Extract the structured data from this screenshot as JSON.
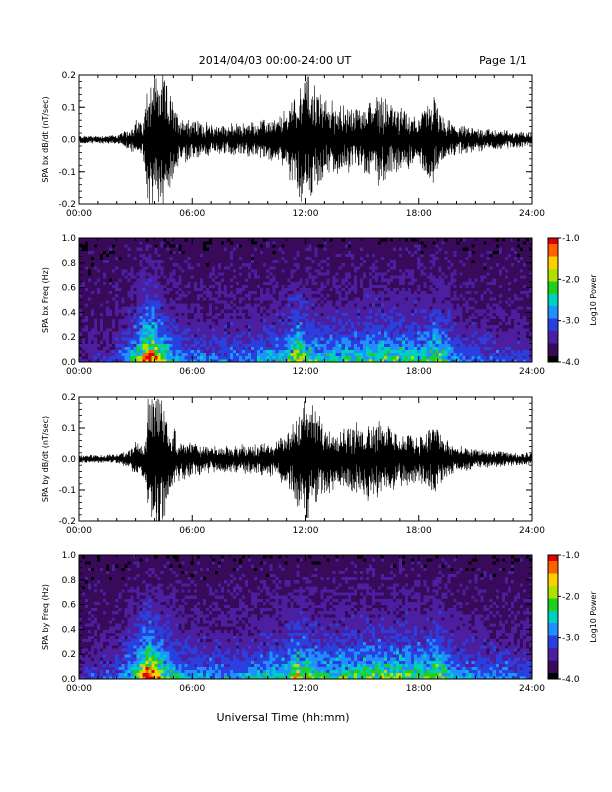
{
  "header": {
    "title": "2014/04/03  00:00-24:00 UT",
    "page": "Page 1/1"
  },
  "x_axis_title": "Universal Time (hh:mm)",
  "colors": {
    "trace": "#000000",
    "spectrogram_scale": [
      "#000000",
      "#3a0a5a",
      "#4b1fa0",
      "#2a3fe0",
      "#1e90ff",
      "#00d0c0",
      "#20d020",
      "#b0e000",
      "#ffd000",
      "#ff6000",
      "#e00000"
    ]
  },
  "chart_data": [
    {
      "type": "line",
      "name": "panel-bx-dbdt",
      "ylabel": "SPA bx dB/dt (nT/sec)",
      "xlim_hours": [
        0,
        24
      ],
      "ylim": [
        -0.2,
        0.2
      ],
      "x_tick_labels": [
        "00:00",
        "06:00",
        "12:00",
        "18:00",
        "24:00"
      ],
      "y_tick_labels": [
        "0.2",
        "0.1",
        "0.0",
        "-0.1",
        "-0.2"
      ],
      "y_tick_values": [
        0.2,
        0.1,
        0.0,
        -0.1,
        -0.2
      ],
      "envelope": {
        "x_hours": [
          0,
          1,
          2,
          2.7,
          3.0,
          3.4,
          3.7,
          4.0,
          4.4,
          4.8,
          5.2,
          6,
          7,
          8,
          9,
          10,
          10.5,
          11,
          11.5,
          12,
          12.5,
          13,
          14,
          15,
          15.5,
          16,
          16.5,
          17,
          18,
          18.5,
          18.8,
          19.2,
          20,
          21,
          22,
          23,
          24
        ],
        "amplitude": [
          0.012,
          0.012,
          0.014,
          0.03,
          0.06,
          0.05,
          0.2,
          0.2,
          0.2,
          0.14,
          0.08,
          0.06,
          0.045,
          0.045,
          0.05,
          0.06,
          0.06,
          0.09,
          0.15,
          0.2,
          0.16,
          0.12,
          0.1,
          0.09,
          0.13,
          0.14,
          0.11,
          0.09,
          0.07,
          0.11,
          0.13,
          0.07,
          0.04,
          0.035,
          0.03,
          0.025,
          0.022
        ]
      }
    },
    {
      "type": "heatmap",
      "name": "panel-bx-freq",
      "ylabel": "SPA bx Freq (Hz)",
      "colorbar_label": "Log10 Power",
      "colorbar_ticks": [
        "-1.0",
        "-2.0",
        "-3.0",
        "-4.0"
      ],
      "color_range": [
        -4.0,
        -1.0
      ],
      "xlim_hours": [
        0,
        24
      ],
      "ylim_hz": [
        0.0,
        1.0
      ],
      "x_tick_labels": [
        "00:00",
        "06:00",
        "12:00",
        "18:00",
        "24:00"
      ],
      "y_tick_labels": [
        "1.0",
        "0.8",
        "0.6",
        "0.4",
        "0.2",
        "0.0"
      ],
      "y_tick_values": [
        1.0,
        0.8,
        0.6,
        0.4,
        0.2,
        0.0
      ],
      "activity_hours": [
        0,
        2,
        3.0,
        3.6,
        3.9,
        4.3,
        5.0,
        6,
        9,
        11,
        11.6,
        12,
        13,
        15,
        16,
        18.5,
        18.9,
        20,
        24
      ],
      "activity_level": [
        0.1,
        0.2,
        0.5,
        1.0,
        0.95,
        0.7,
        0.4,
        0.3,
        0.3,
        0.45,
        0.75,
        0.55,
        0.45,
        0.5,
        0.55,
        0.5,
        0.65,
        0.3,
        0.2
      ]
    },
    {
      "type": "line",
      "name": "panel-by-dbdt",
      "ylabel": "SPA by dB/dt (nT/sec)",
      "xlim_hours": [
        0,
        24
      ],
      "ylim": [
        -0.2,
        0.2
      ],
      "x_tick_labels": [
        "00:00",
        "06:00",
        "12:00",
        "18:00",
        "24:00"
      ],
      "y_tick_labels": [
        "0.2",
        "0.1",
        "0.0",
        "-0.1",
        "-0.2"
      ],
      "y_tick_values": [
        0.2,
        0.1,
        0.0,
        -0.1,
        -0.2
      ],
      "envelope": {
        "x_hours": [
          0,
          1,
          2,
          2.7,
          3.0,
          3.4,
          3.7,
          4.0,
          4.4,
          4.8,
          5.2,
          6,
          7,
          8,
          9,
          10,
          10.5,
          11,
          11.5,
          12,
          12.5,
          13,
          14,
          15,
          15.5,
          16,
          16.5,
          17,
          18,
          18.5,
          18.8,
          19.2,
          20,
          21,
          22,
          23,
          24
        ],
        "amplitude": [
          0.012,
          0.012,
          0.014,
          0.03,
          0.05,
          0.05,
          0.2,
          0.2,
          0.2,
          0.12,
          0.07,
          0.05,
          0.04,
          0.04,
          0.045,
          0.05,
          0.055,
          0.09,
          0.14,
          0.19,
          0.15,
          0.11,
          0.1,
          0.11,
          0.13,
          0.12,
          0.1,
          0.08,
          0.07,
          0.1,
          0.13,
          0.07,
          0.04,
          0.03,
          0.025,
          0.02,
          0.02
        ]
      }
    },
    {
      "type": "heatmap",
      "name": "panel-by-freq",
      "ylabel": "SPA by Freq (Hz)",
      "colorbar_label": "Log10 Power",
      "colorbar_ticks": [
        "-1.0",
        "-2.0",
        "-3.0",
        "-4.0"
      ],
      "color_range": [
        -4.0,
        -1.0
      ],
      "xlim_hours": [
        0,
        24
      ],
      "ylim_hz": [
        0.0,
        1.0
      ],
      "x_tick_labels": [
        "00:00",
        "06:00",
        "12:00",
        "18:00",
        "24:00"
      ],
      "y_tick_labels": [
        "1.0",
        "0.8",
        "0.6",
        "0.4",
        "0.2",
        "0.0"
      ],
      "y_tick_values": [
        1.0,
        0.8,
        0.6,
        0.4,
        0.2,
        0.0
      ],
      "activity_hours": [
        0,
        2,
        3.0,
        3.6,
        3.9,
        4.3,
        5.0,
        6,
        9,
        11,
        11.6,
        12,
        13,
        15,
        16,
        18.5,
        18.9,
        20,
        24
      ],
      "activity_level": [
        0.15,
        0.25,
        0.55,
        1.0,
        0.95,
        0.75,
        0.45,
        0.35,
        0.35,
        0.5,
        0.75,
        0.6,
        0.5,
        0.55,
        0.6,
        0.55,
        0.7,
        0.35,
        0.25
      ]
    }
  ]
}
